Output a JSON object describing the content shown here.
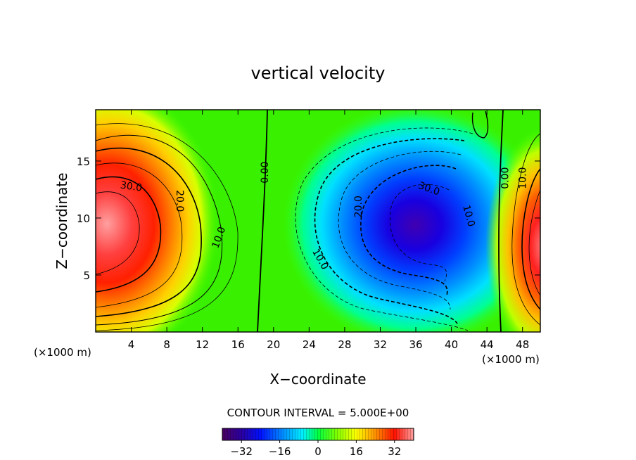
{
  "chart_data": {
    "type": "contour",
    "title": "vertical velocity",
    "xlabel": "X−coordinate",
    "ylabel": "Z−coordinate",
    "x_unit_left": "(×1000 m)",
    "x_unit_right": "(×1000 m)",
    "xlim": [
      0,
      50
    ],
    "ylim": [
      0,
      19.5
    ],
    "x_ticks": [
      4,
      8,
      12,
      16,
      20,
      24,
      28,
      32,
      36,
      40,
      44,
      48
    ],
    "y_ticks": [
      5,
      10,
      15
    ],
    "contour_interval_text": "CONTOUR INTERVAL = 5.000E+00",
    "contour_interval": 5,
    "colorbar": {
      "range": [
        -40,
        40
      ],
      "ticks": [
        -32,
        -16,
        0,
        16,
        32
      ],
      "tick_labels": [
        "−32",
        "−16",
        "0",
        "16",
        "32"
      ]
    },
    "extrema": [
      {
        "type": "max",
        "x": 1.0,
        "z": 8.5,
        "value": 38
      },
      {
        "type": "min",
        "x": 36.5,
        "z": 9.0,
        "value": -38
      },
      {
        "type": "max",
        "x": 49.5,
        "z": 7.5,
        "value": 35
      }
    ],
    "contour_labels": [
      {
        "text": "30.0",
        "x": 4.0,
        "z": 12.8,
        "rotate": 8
      },
      {
        "text": "20.0",
        "x": 9.5,
        "z": 11.5,
        "rotate": 90
      },
      {
        "text": "10.0",
        "x": 13.8,
        "z": 8.3,
        "rotate": -70
      },
      {
        "text": "0.00",
        "x": 19.0,
        "z": 14.0,
        "rotate": -90
      },
      {
        "text": "10.0",
        "x": 25.3,
        "z": 6.4,
        "rotate": 60
      },
      {
        "text": "20.0",
        "x": 29.5,
        "z": 11.0,
        "rotate": -90
      },
      {
        "text": "30.0",
        "x": 37.5,
        "z": 12.6,
        "rotate": 20
      },
      {
        "text": "10.0",
        "x": 42.0,
        "z": 10.2,
        "rotate": 75
      },
      {
        "text": "0.00",
        "x": 46.0,
        "z": 13.5,
        "rotate": -90
      },
      {
        "text": "10.0",
        "x": 48.0,
        "z": 13.5,
        "rotate": -90
      }
    ]
  }
}
